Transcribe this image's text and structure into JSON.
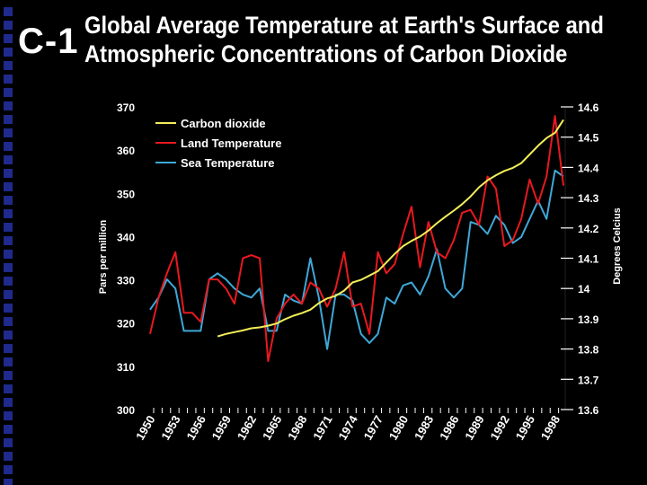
{
  "slide": {
    "number": "C-1",
    "title_line1": "Global Average Temperature at Earth's Surface and",
    "title_line2": "Atmospheric Concentrations of Carbon Dioxide"
  },
  "colors": {
    "background": "#000000",
    "side_squares": "#1f2a8c",
    "co2": "#f2ee5a",
    "land": "#e8191f",
    "sea": "#3fa8d8"
  },
  "chart_data": {
    "type": "line",
    "x_range": [
      1950,
      1999
    ],
    "x_ticks": [
      "1950",
      "1953",
      "1956",
      "1959",
      "1962",
      "1965",
      "1968",
      "1971",
      "1974",
      "1977",
      "1980",
      "1983",
      "1986",
      "1989",
      "1992",
      "1995",
      "1998"
    ],
    "y_left": {
      "label": "Pars per million",
      "range": [
        300,
        370
      ],
      "ticks": [
        "300",
        "310",
        "320",
        "330",
        "340",
        "350",
        "360",
        "370"
      ]
    },
    "y_right": {
      "label": "Degrees Celcius",
      "range": [
        13.6,
        14.6
      ],
      "ticks": [
        "13.6",
        "13.7",
        "13.8",
        "13.9",
        "14",
        "14.1",
        "14.2",
        "14.3",
        "14.4",
        "14.5",
        "14.6"
      ]
    },
    "legend_position": "top-left",
    "series": [
      {
        "name": "Carbon dioxide",
        "axis": "left",
        "color": "#f2ee5a",
        "x": [
          1958,
          1959,
          1960,
          1961,
          1962,
          1963,
          1964,
          1965,
          1966,
          1967,
          1968,
          1969,
          1970,
          1971,
          1972,
          1973,
          1974,
          1975,
          1976,
          1977,
          1978,
          1979,
          1980,
          1981,
          1982,
          1983,
          1984,
          1985,
          1986,
          1987,
          1988,
          1989,
          1990,
          1991,
          1992,
          1993,
          1994,
          1995,
          1996,
          1997,
          1998,
          1999
        ],
        "y": [
          316.9,
          317.5,
          317.9,
          318.3,
          318.8,
          319.0,
          319.4,
          319.9,
          320.9,
          321.7,
          322.3,
          323.1,
          324.6,
          325.7,
          326.3,
          327.5,
          329.4,
          330.0,
          331.0,
          332.0,
          334.0,
          336.0,
          337.8,
          339.0,
          340.0,
          341.4,
          343.1,
          344.6,
          346.0,
          347.5,
          349.3,
          351.4,
          353.0,
          354.2,
          355.2,
          355.9,
          357.0,
          359.0,
          361.0,
          362.8,
          364.0,
          367.0
        ]
      },
      {
        "name": "Land Temperature",
        "axis": "right",
        "color": "#e8191f",
        "x": [
          1950,
          1951,
          1952,
          1953,
          1954,
          1955,
          1956,
          1957,
          1958,
          1959,
          1960,
          1961,
          1962,
          1963,
          1964,
          1965,
          1966,
          1967,
          1968,
          1969,
          1970,
          1971,
          1972,
          1973,
          1974,
          1975,
          1976,
          1977,
          1978,
          1979,
          1980,
          1981,
          1982,
          1983,
          1984,
          1985,
          1986,
          1987,
          1988,
          1989,
          1990,
          1991,
          1992,
          1993,
          1994,
          1995,
          1996,
          1997,
          1998,
          1999
        ],
        "y": [
          13.85,
          13.97,
          14.05,
          14.12,
          13.92,
          13.92,
          13.89,
          14.03,
          14.03,
          14.0,
          13.95,
          14.1,
          14.11,
          14.1,
          13.76,
          13.9,
          13.95,
          13.98,
          13.95,
          14.02,
          14.0,
          13.94,
          14.0,
          14.12,
          13.94,
          13.95,
          13.85,
          14.12,
          14.05,
          14.08,
          14.18,
          14.27,
          14.07,
          14.22,
          14.12,
          14.1,
          14.16,
          14.25,
          14.26,
          14.21,
          14.37,
          14.33,
          14.14,
          14.16,
          14.23,
          14.36,
          14.28,
          14.37,
          14.57,
          14.34
        ]
      },
      {
        "name": "Sea Temperature",
        "axis": "right",
        "color": "#3fa8d8",
        "x": [
          1950,
          1951,
          1952,
          1953,
          1954,
          1955,
          1956,
          1957,
          1958,
          1959,
          1960,
          1961,
          1962,
          1963,
          1964,
          1965,
          1966,
          1967,
          1968,
          1969,
          1970,
          1971,
          1972,
          1973,
          1974,
          1975,
          1976,
          1977,
          1978,
          1979,
          1980,
          1981,
          1982,
          1983,
          1984,
          1985,
          1986,
          1987,
          1988,
          1989,
          1990,
          1991,
          1992,
          1993,
          1994,
          1995,
          1996,
          1997,
          1998,
          1999
        ],
        "y": [
          13.93,
          13.97,
          14.03,
          14.0,
          13.86,
          13.86,
          13.86,
          14.03,
          14.05,
          14.03,
          14.0,
          13.98,
          13.97,
          14.0,
          13.86,
          13.86,
          13.98,
          13.96,
          13.95,
          14.1,
          13.97,
          13.8,
          13.98,
          13.98,
          13.96,
          13.85,
          13.82,
          13.85,
          13.97,
          13.95,
          14.01,
          14.02,
          13.98,
          14.04,
          14.13,
          14.0,
          13.97,
          14.0,
          14.22,
          14.21,
          14.18,
          14.24,
          14.21,
          14.15,
          14.17,
          14.23,
          14.29,
          14.23,
          14.39,
          14.37
        ]
      }
    ]
  }
}
